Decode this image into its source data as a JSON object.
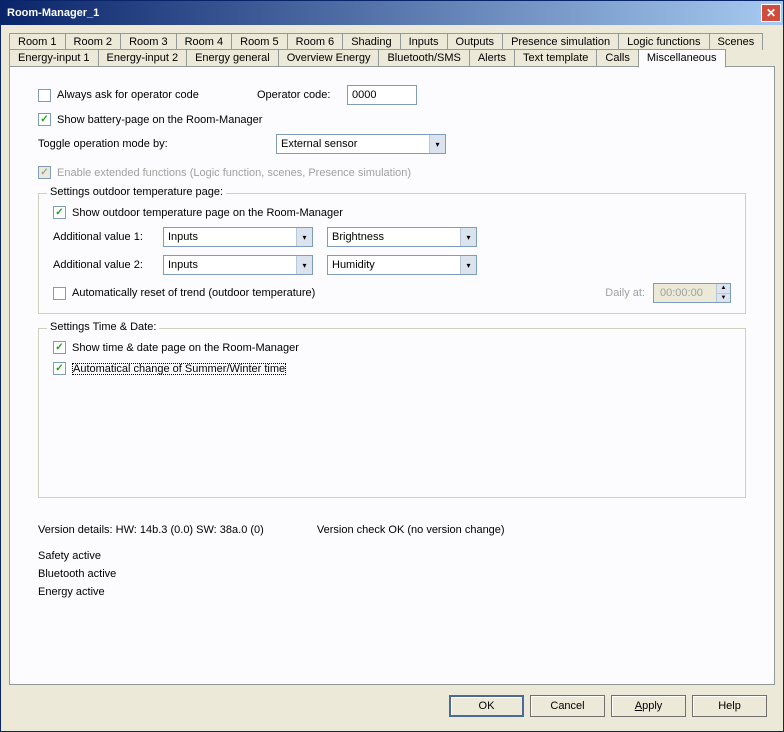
{
  "window": {
    "title": "Room-Manager_1"
  },
  "tabs_row1": [
    "Room 1",
    "Room 2",
    "Room 3",
    "Room 4",
    "Room 5",
    "Room 6",
    "Shading",
    "Inputs",
    "Outputs",
    "Presence simulation",
    "Logic functions",
    "Scenes"
  ],
  "tabs_row2": [
    "Energy-input 1",
    "Energy-input 2",
    "Energy general",
    "Overview Energy",
    "Bluetooth/SMS",
    "Alerts",
    "Text template",
    "Calls",
    "Miscellaneous"
  ],
  "active_tab": "Miscellaneous",
  "misc": {
    "always_ask_label": "Always ask for operator code",
    "operator_code_label": "Operator code:",
    "operator_code_value": "0000",
    "show_battery_label": "Show battery-page on the Room-Manager",
    "toggle_mode_label": "Toggle operation mode by:",
    "toggle_mode_value": "External sensor",
    "enable_ext_label": "Enable extended functions (Logic function, scenes, Presence simulation)"
  },
  "outdoor": {
    "legend": "Settings outdoor temperature page:",
    "show_label": "Show outdoor temperature page on the Room-Manager",
    "add_val1_label": "Additional value 1:",
    "add_val1_sel1": "Inputs",
    "add_val1_sel2": "Brightness",
    "add_val2_label": "Additional value 2:",
    "add_val2_sel1": "Inputs",
    "add_val2_sel2": "Humidity",
    "auto_reset_label": "Automatically reset of trend (outdoor temperature)",
    "daily_at_label": "Daily at:",
    "daily_at_value": "00:00:00"
  },
  "timedate": {
    "legend": "Settings Time & Date:",
    "show_label": "Show time & date page on the Room-Manager",
    "auto_change_label": "Automatical change of Summer/Winter time"
  },
  "footer": {
    "version_details": "Version details:   HW: 14b.3 (0.0)   SW: 38a.0 (0)",
    "version_check": "Version check OK (no version change)",
    "status1": "Safety active",
    "status2": "Bluetooth active",
    "status3": "Energy active"
  },
  "buttons": {
    "ok": "OK",
    "cancel": "Cancel",
    "apply": "Apply",
    "help": "Help"
  }
}
